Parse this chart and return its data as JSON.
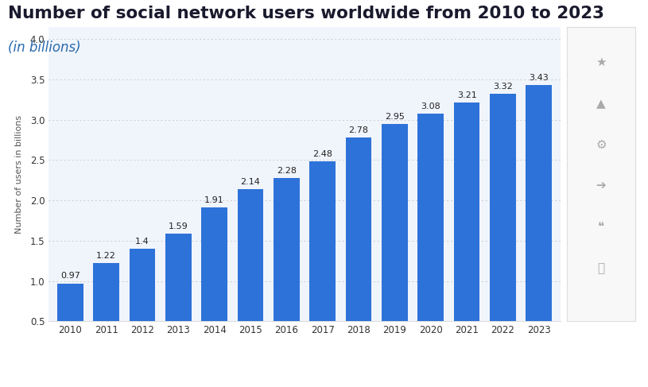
{
  "title": "Number of social network users worldwide from 2010 to 2023",
  "subtitle": "(in billions)",
  "title_color": "#1a1a2e",
  "subtitle_color": "#2a6aad",
  "years": [
    "2010",
    "2011",
    "2012",
    "2013",
    "2014",
    "2015",
    "2016",
    "2017",
    "2018",
    "2019",
    "2020",
    "2021",
    "2022",
    "2023"
  ],
  "values": [
    0.97,
    1.22,
    1.4,
    1.59,
    1.91,
    2.14,
    2.28,
    2.48,
    2.78,
    2.95,
    3.08,
    3.21,
    3.32,
    3.43
  ],
  "bar_color": "#2d72d9",
  "ylabel": "Number of users in billions",
  "ylabel_color": "#555555",
  "ylim_min": 0.5,
  "ylim_max": 4.15,
  "yticks": [
    0.5,
    1.0,
    1.5,
    2.0,
    2.5,
    3.0,
    3.5,
    4.0
  ],
  "grid_color": "#cccccc",
  "bg_color": "#ffffff",
  "plot_bg_color": "#f0f4fb",
  "chart_border_color": "#dddddd",
  "sidebar_bg": "#f8f8f8",
  "label_fontsize": 8.0,
  "title_fontsize": 15.5,
  "subtitle_fontsize": 12,
  "ylabel_fontsize": 8,
  "tick_fontsize": 8.5
}
